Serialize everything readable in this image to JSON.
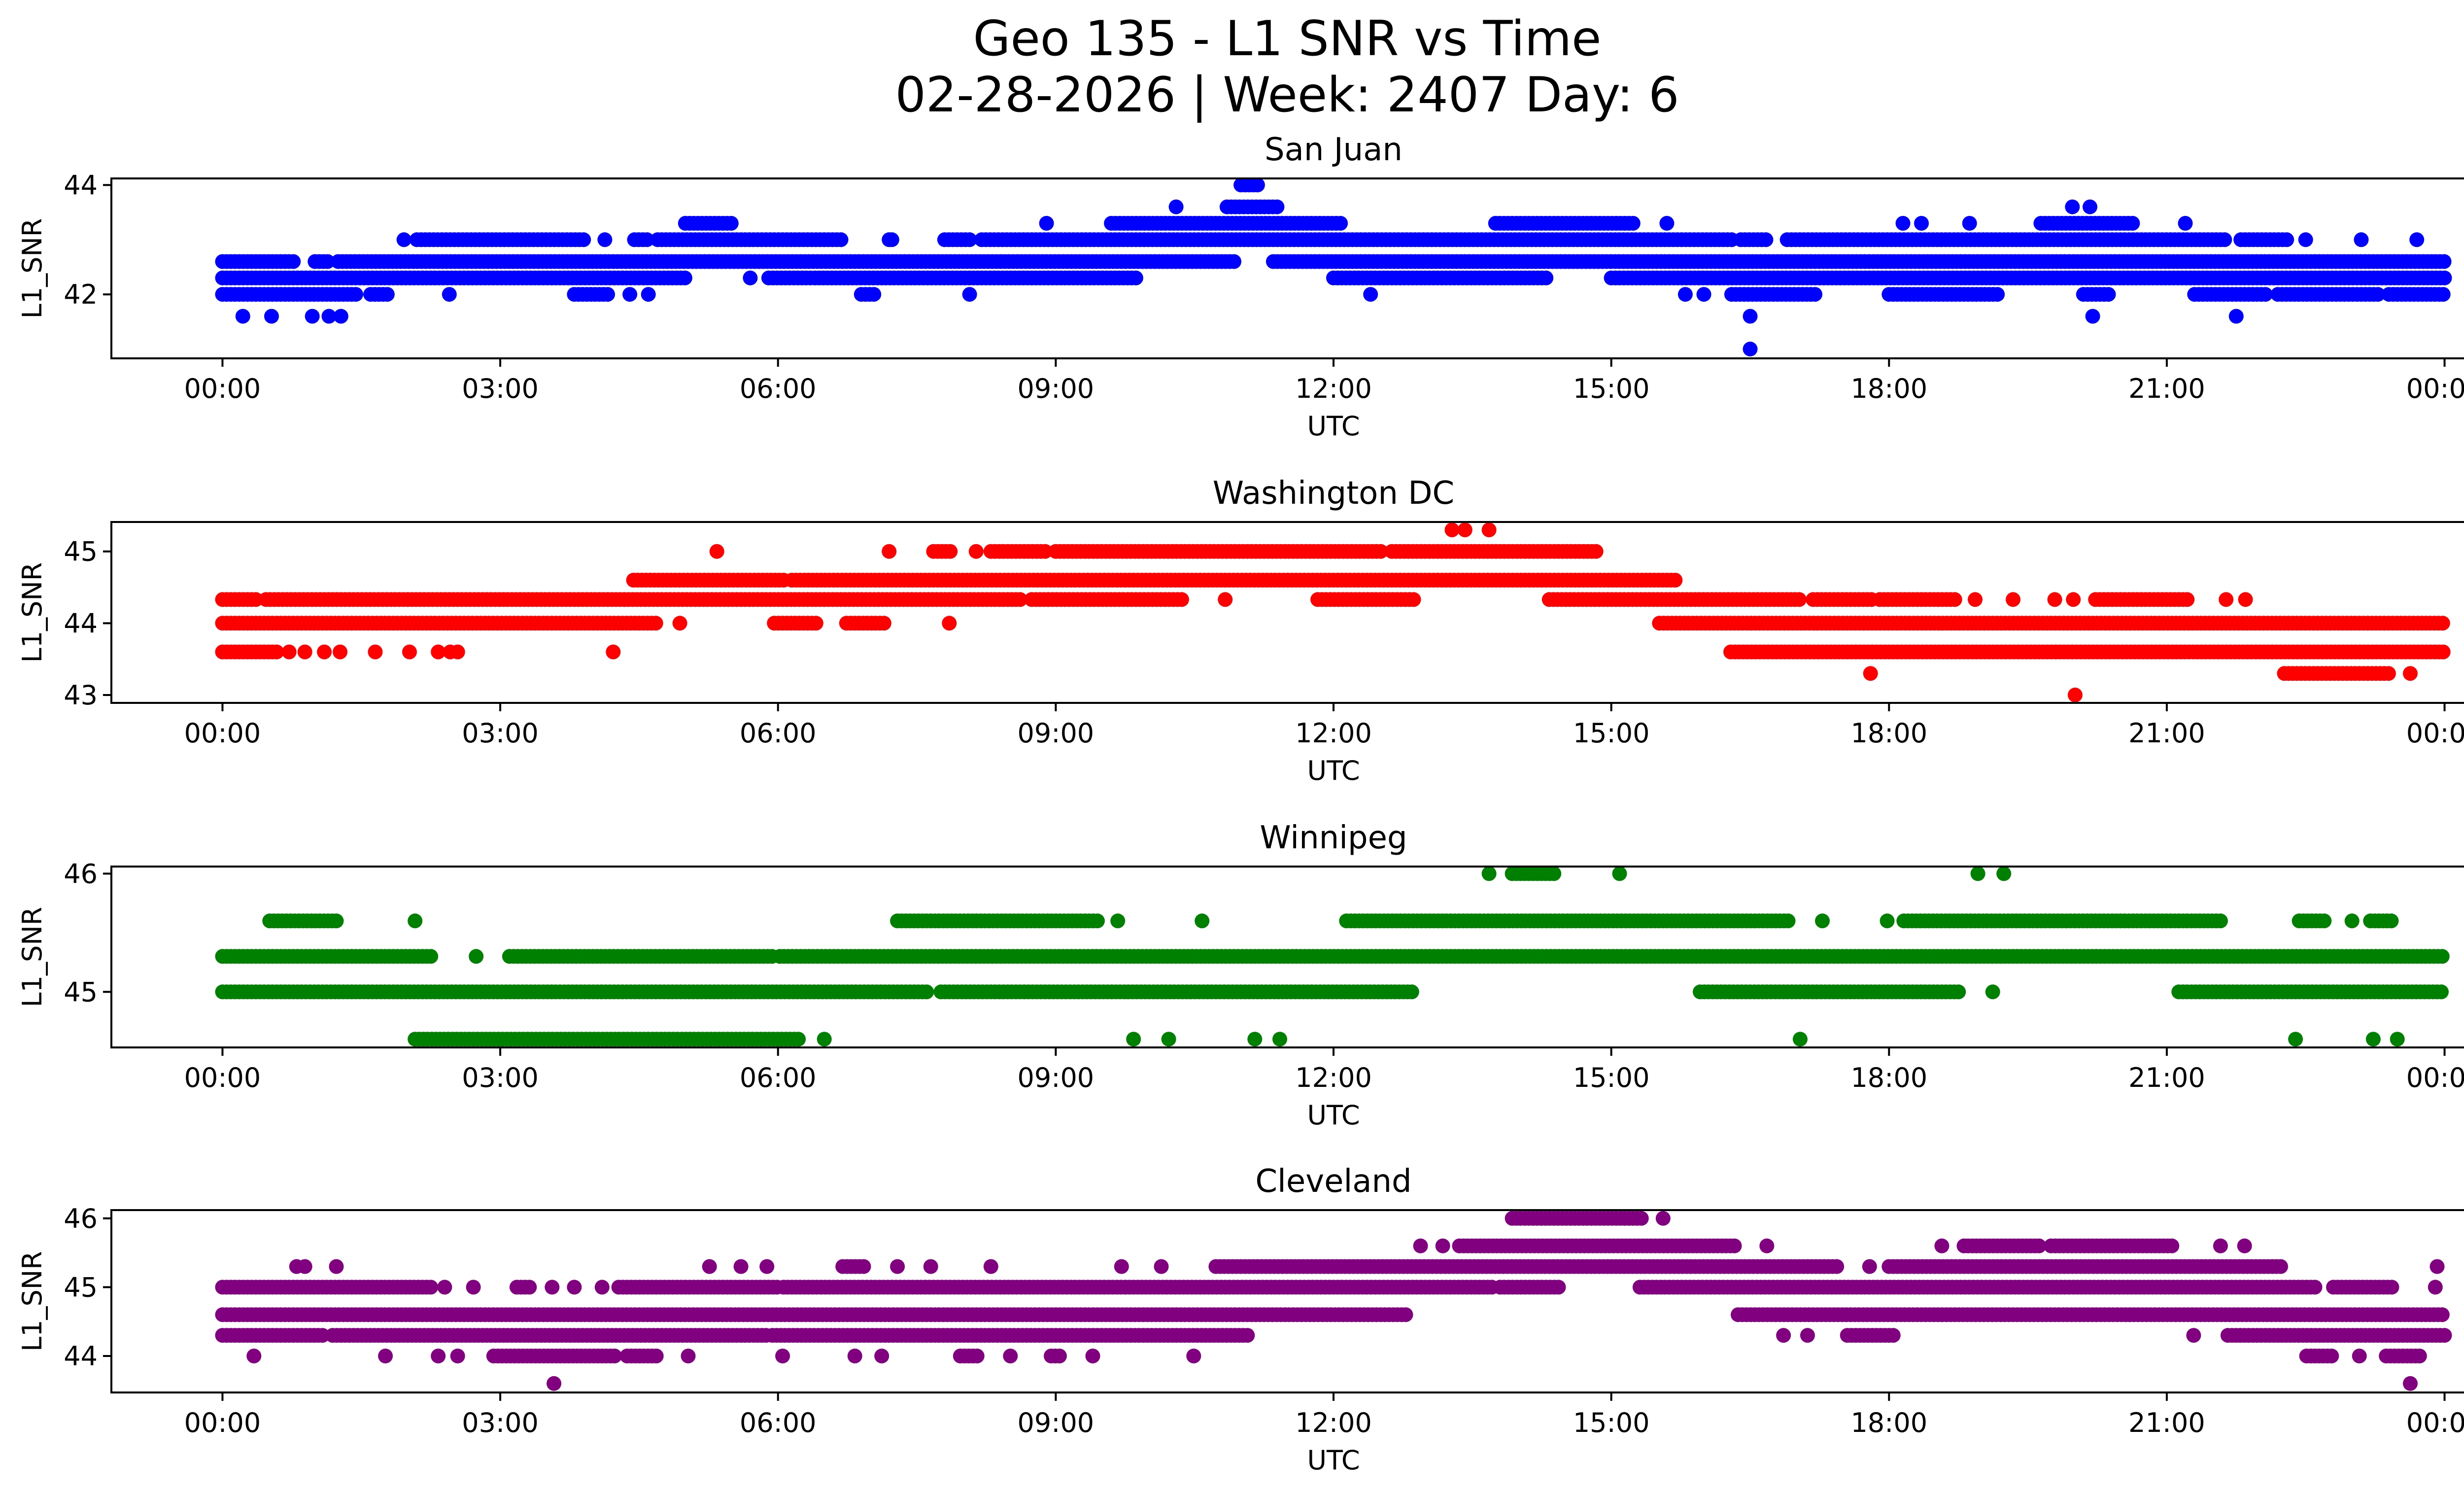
{
  "figure": {
    "suptitle_line1": "Geo 135 - L1 SNR vs Time",
    "suptitle_line2": "02-28-2026 | Week: 2407 Day: 6"
  },
  "chart_data": [
    {
      "type": "scatter",
      "title": "San Juan",
      "xlabel": "UTC",
      "ylabel": "L1_SNR",
      "color": "#0000ff",
      "xlim_hours": [
        -1.2,
        25.2
      ],
      "ylim": [
        40.83,
        44.12
      ],
      "xticks": [
        {
          "h": 0,
          "label": "00:00"
        },
        {
          "h": 3,
          "label": "03:00"
        },
        {
          "h": 6,
          "label": "06:00"
        },
        {
          "h": 9,
          "label": "09:00"
        },
        {
          "h": 12,
          "label": "12:00"
        },
        {
          "h": 15,
          "label": "15:00"
        },
        {
          "h": 18,
          "label": "18:00"
        },
        {
          "h": 21,
          "label": "21:00"
        },
        {
          "h": 24,
          "label": "00:00"
        }
      ],
      "yticks": [
        {
          "v": 42,
          "label": "42"
        },
        {
          "v": 44,
          "label": "44"
        }
      ],
      "runs": [
        [
          44.0,
          11.0,
          11.2
        ],
        [
          43.6,
          10.85,
          11.4
        ],
        [
          43.3,
          5.0,
          5.5
        ],
        [
          43.3,
          9.6,
          12.1
        ],
        [
          43.3,
          13.75,
          15.25
        ],
        [
          43.3,
          19.64,
          20.65
        ],
        [
          43.0,
          2.1,
          3.9
        ],
        [
          43.0,
          4.45,
          4.6
        ],
        [
          43.0,
          4.7,
          6.7
        ],
        [
          43.0,
          7.8,
          8.07
        ],
        [
          43.0,
          8.2,
          16.3
        ],
        [
          43.0,
          16.4,
          16.7
        ],
        [
          43.0,
          16.9,
          21.66
        ],
        [
          43.0,
          21.8,
          22.3
        ],
        [
          42.6,
          0.0,
          0.8
        ],
        [
          42.6,
          1.0,
          1.15
        ],
        [
          42.6,
          1.25,
          10.95
        ],
        [
          42.6,
          11.35,
          24.0
        ],
        [
          42.3,
          0.0,
          5.0
        ],
        [
          42.3,
          5.9,
          6.35
        ],
        [
          42.3,
          6.4,
          9.9
        ],
        [
          42.3,
          12.0,
          14.3
        ],
        [
          42.3,
          15.0,
          24.0
        ],
        [
          42.0,
          0.0,
          1.48
        ],
        [
          42.0,
          1.6,
          1.8
        ],
        [
          42.0,
          3.8,
          4.2
        ],
        [
          42.0,
          6.9,
          7.05
        ],
        [
          42.0,
          16.3,
          17.2
        ],
        [
          42.0,
          18.0,
          19.2
        ],
        [
          42.0,
          20.1,
          20.4
        ],
        [
          42.0,
          21.3,
          22.1
        ],
        [
          42.0,
          22.2,
          23.3
        ],
        [
          42.0,
          23.4,
          24.0
        ]
      ],
      "points": [
        [
          10.3,
          43.6
        ],
        [
          19.98,
          43.6
        ],
        [
          20.17,
          43.6
        ],
        [
          8.9,
          43.3
        ],
        [
          15.6,
          43.3
        ],
        [
          18.15,
          43.3
        ],
        [
          18.35,
          43.3
        ],
        [
          18.87,
          43.3
        ],
        [
          21.2,
          43.3
        ],
        [
          1.96,
          43.0
        ],
        [
          4.13,
          43.0
        ],
        [
          7.2,
          43.0
        ],
        [
          7.23,
          43.0
        ],
        [
          22.5,
          43.0
        ],
        [
          23.1,
          43.0
        ],
        [
          23.7,
          43.0
        ],
        [
          5.7,
          42.3
        ],
        [
          2.45,
          42.0
        ],
        [
          4.4,
          42.0
        ],
        [
          4.6,
          42.0
        ],
        [
          8.07,
          42.0
        ],
        [
          12.4,
          42.0
        ],
        [
          15.8,
          42.0
        ],
        [
          16.0,
          42.0
        ],
        [
          0.22,
          41.6
        ],
        [
          0.53,
          41.6
        ],
        [
          0.97,
          41.6
        ],
        [
          1.15,
          41.6
        ],
        [
          1.28,
          41.6
        ],
        [
          16.5,
          41.6
        ],
        [
          20.2,
          41.6
        ],
        [
          21.75,
          41.6
        ],
        [
          16.5,
          41.0
        ]
      ]
    },
    {
      "type": "scatter",
      "title": "Washington DC",
      "xlabel": "UTC",
      "ylabel": "L1_SNR",
      "color": "#ff0000",
      "xlim_hours": [
        -1.2,
        25.2
      ],
      "ylim": [
        42.89,
        45.41
      ],
      "xticks": [
        {
          "h": 0,
          "label": "00:00"
        },
        {
          "h": 3,
          "label": "03:00"
        },
        {
          "h": 6,
          "label": "06:00"
        },
        {
          "h": 9,
          "label": "09:00"
        },
        {
          "h": 12,
          "label": "12:00"
        },
        {
          "h": 15,
          "label": "15:00"
        },
        {
          "h": 18,
          "label": "18:00"
        },
        {
          "h": 21,
          "label": "21:00"
        },
        {
          "h": 24,
          "label": "00:00"
        }
      ],
      "yticks": [
        {
          "v": 43,
          "label": "43"
        },
        {
          "v": 44,
          "label": "44"
        },
        {
          "v": 45,
          "label": "45"
        }
      ],
      "runs": [
        [
          45.0,
          7.68,
          7.9
        ],
        [
          45.0,
          8.3,
          8.9
        ],
        [
          45.0,
          9.0,
          12.55
        ],
        [
          45.0,
          12.63,
          14.86
        ],
        [
          44.6,
          4.44,
          6.08
        ],
        [
          44.6,
          6.15,
          15.72
        ],
        [
          44.33,
          0.0,
          0.38
        ],
        [
          44.33,
          0.47,
          8.65
        ],
        [
          44.33,
          8.74,
          10.4
        ],
        [
          44.33,
          11.83,
          12.87
        ],
        [
          44.33,
          14.33,
          17.06
        ],
        [
          44.33,
          17.18,
          17.83
        ],
        [
          44.33,
          17.9,
          18.73
        ],
        [
          44.33,
          20.23,
          21.25
        ],
        [
          44.0,
          0.0,
          4.7
        ],
        [
          44.0,
          5.96,
          6.45
        ],
        [
          44.0,
          6.74,
          7.18
        ],
        [
          44.0,
          15.52,
          24.0
        ],
        [
          43.6,
          0.0,
          0.6
        ],
        [
          43.6,
          16.29,
          24.0
        ],
        [
          43.3,
          22.27,
          23.4
        ]
      ],
      "points": [
        [
          13.28,
          45.3
        ],
        [
          13.42,
          45.3
        ],
        [
          13.68,
          45.3
        ],
        [
          5.34,
          45.0
        ],
        [
          7.2,
          45.0
        ],
        [
          8.14,
          45.0
        ],
        [
          10.83,
          44.33
        ],
        [
          18.93,
          44.33
        ],
        [
          19.34,
          44.33
        ],
        [
          19.79,
          44.33
        ],
        [
          19.99,
          44.33
        ],
        [
          21.64,
          44.33
        ],
        [
          21.85,
          44.33
        ],
        [
          4.94,
          44.0
        ],
        [
          7.85,
          44.0
        ],
        [
          0.72,
          43.6
        ],
        [
          0.89,
          43.6
        ],
        [
          1.1,
          43.6
        ],
        [
          1.27,
          43.6
        ],
        [
          1.65,
          43.6
        ],
        [
          2.02,
          43.6
        ],
        [
          2.33,
          43.6
        ],
        [
          2.46,
          43.6
        ],
        [
          2.54,
          43.6
        ],
        [
          4.22,
          43.6
        ],
        [
          17.8,
          43.3
        ],
        [
          23.63,
          43.3
        ],
        [
          20.01,
          43.0
        ]
      ]
    },
    {
      "type": "scatter",
      "title": "Winnipeg",
      "xlabel": "UTC",
      "ylabel": "L1_SNR",
      "color": "#008000",
      "xlim_hours": [
        -1.2,
        25.2
      ],
      "ylim": [
        44.53,
        46.06
      ],
      "xticks": [
        {
          "h": 0,
          "label": "00:00"
        },
        {
          "h": 3,
          "label": "03:00"
        },
        {
          "h": 6,
          "label": "06:00"
        },
        {
          "h": 9,
          "label": "09:00"
        },
        {
          "h": 12,
          "label": "12:00"
        },
        {
          "h": 15,
          "label": "15:00"
        },
        {
          "h": 18,
          "label": "18:00"
        },
        {
          "h": 21,
          "label": "21:00"
        },
        {
          "h": 24,
          "label": "00:00"
        }
      ],
      "yticks": [
        {
          "v": 45,
          "label": "45"
        },
        {
          "v": 46,
          "label": "46"
        }
      ],
      "runs": [
        [
          46.0,
          13.93,
          14.42
        ],
        [
          45.6,
          0.51,
          1.23
        ],
        [
          45.6,
          7.29,
          9.46
        ],
        [
          45.6,
          12.14,
          16.94
        ],
        [
          45.6,
          18.16,
          21.62
        ],
        [
          45.6,
          22.43,
          22.72
        ],
        [
          45.6,
          23.2,
          23.45
        ],
        [
          45.3,
          0.0,
          2.25
        ],
        [
          45.3,
          3.1,
          5.94
        ],
        [
          45.3,
          6.02,
          24.0
        ],
        [
          45.0,
          0.0,
          7.63
        ],
        [
          45.0,
          7.76,
          12.87
        ],
        [
          45.0,
          15.96,
          18.77
        ],
        [
          45.0,
          21.13,
          24.0
        ],
        [
          44.6,
          2.08,
          6.23
        ]
      ],
      "points": [
        [
          13.68,
          46.0
        ],
        [
          15.09,
          46.0
        ],
        [
          18.96,
          46.0
        ],
        [
          19.24,
          46.0
        ],
        [
          2.08,
          45.6
        ],
        [
          9.67,
          45.6
        ],
        [
          10.58,
          45.6
        ],
        [
          17.28,
          45.6
        ],
        [
          17.98,
          45.6
        ],
        [
          23.0,
          45.6
        ],
        [
          2.74,
          45.3
        ],
        [
          19.12,
          45.0
        ],
        [
          6.5,
          44.6
        ],
        [
          9.84,
          44.6
        ],
        [
          10.22,
          44.6
        ],
        [
          11.15,
          44.6
        ],
        [
          11.42,
          44.6
        ],
        [
          17.04,
          44.6
        ],
        [
          22.39,
          44.6
        ],
        [
          23.23,
          44.6
        ],
        [
          23.49,
          44.6
        ]
      ]
    },
    {
      "type": "scatter",
      "title": "Cleveland",
      "xlabel": "UTC",
      "ylabel": "L1_SNR",
      "color": "#800080",
      "xlim_hours": [
        -1.2,
        25.2
      ],
      "ylim": [
        43.47,
        46.12
      ],
      "xticks": [
        {
          "h": 0,
          "label": "00:00"
        },
        {
          "h": 3,
          "label": "03:00"
        },
        {
          "h": 6,
          "label": "06:00"
        },
        {
          "h": 9,
          "label": "09:00"
        },
        {
          "h": 12,
          "label": "12:00"
        },
        {
          "h": 15,
          "label": "15:00"
        },
        {
          "h": 18,
          "label": "18:00"
        },
        {
          "h": 21,
          "label": "21:00"
        },
        {
          "h": 24,
          "label": "00:00"
        }
      ],
      "yticks": [
        {
          "v": 44,
          "label": "44"
        },
        {
          "v": 45,
          "label": "45"
        },
        {
          "v": 46,
          "label": "46"
        }
      ],
      "runs": [
        [
          46.0,
          13.93,
          15.35
        ],
        [
          45.6,
          13.36,
          16.37
        ],
        [
          45.6,
          18.81,
          19.66
        ],
        [
          45.6,
          19.75,
          21.09
        ],
        [
          45.3,
          6.7,
          6.95
        ],
        [
          45.3,
          10.73,
          17.47
        ],
        [
          45.3,
          18.0,
          22.27
        ],
        [
          45.0,
          0.0,
          2.25
        ],
        [
          45.0,
          3.18,
          3.35
        ],
        [
          45.0,
          4.28,
          6.02
        ],
        [
          45.0,
          6.06,
          13.72
        ],
        [
          45.0,
          13.8,
          14.46
        ],
        [
          45.0,
          15.31,
          22.63
        ],
        [
          45.0,
          22.8,
          23.45
        ],
        [
          44.6,
          0.0,
          12.79
        ],
        [
          44.6,
          16.37,
          24.0
        ],
        [
          44.3,
          0.0,
          1.1
        ],
        [
          44.3,
          1.19,
          5.9
        ],
        [
          44.3,
          5.94,
          11.07
        ],
        [
          44.3,
          17.55,
          18.08
        ],
        [
          44.3,
          21.66,
          24.0
        ],
        [
          44.0,
          2.93,
          4.24
        ],
        [
          44.0,
          4.37,
          4.71
        ],
        [
          44.0,
          7.97,
          8.18
        ],
        [
          44.0,
          8.95,
          9.08
        ],
        [
          44.0,
          22.51,
          22.8
        ],
        [
          44.0,
          23.37,
          23.77
        ]
      ],
      "points": [
        [
          15.56,
          46.0
        ],
        [
          12.94,
          45.6
        ],
        [
          13.18,
          45.6
        ],
        [
          16.68,
          45.6
        ],
        [
          18.57,
          45.6
        ],
        [
          21.58,
          45.6
        ],
        [
          21.84,
          45.6
        ],
        [
          0.8,
          45.3
        ],
        [
          0.89,
          45.3
        ],
        [
          1.23,
          45.3
        ],
        [
          5.26,
          45.3
        ],
        [
          5.6,
          45.3
        ],
        [
          5.88,
          45.3
        ],
        [
          7.29,
          45.3
        ],
        [
          7.65,
          45.3
        ],
        [
          8.3,
          45.3
        ],
        [
          9.71,
          45.3
        ],
        [
          10.14,
          45.3
        ],
        [
          17.79,
          45.3
        ],
        [
          23.92,
          45.3
        ],
        [
          2.4,
          45.0
        ],
        [
          2.71,
          45.0
        ],
        [
          3.56,
          45.0
        ],
        [
          3.8,
          45.0
        ],
        [
          4.1,
          45.0
        ],
        [
          23.9,
          45.0
        ],
        [
          16.86,
          44.3
        ],
        [
          17.12,
          44.3
        ],
        [
          21.29,
          44.3
        ],
        [
          0.34,
          44.0
        ],
        [
          1.76,
          44.0
        ],
        [
          2.33,
          44.0
        ],
        [
          2.54,
          44.0
        ],
        [
          5.03,
          44.0
        ],
        [
          6.05,
          44.0
        ],
        [
          6.83,
          44.0
        ],
        [
          7.12,
          44.0
        ],
        [
          8.51,
          44.0
        ],
        [
          9.4,
          44.0
        ],
        [
          10.49,
          44.0
        ],
        [
          23.08,
          44.0
        ],
        [
          3.58,
          43.6
        ],
        [
          23.63,
          43.6
        ]
      ]
    }
  ]
}
